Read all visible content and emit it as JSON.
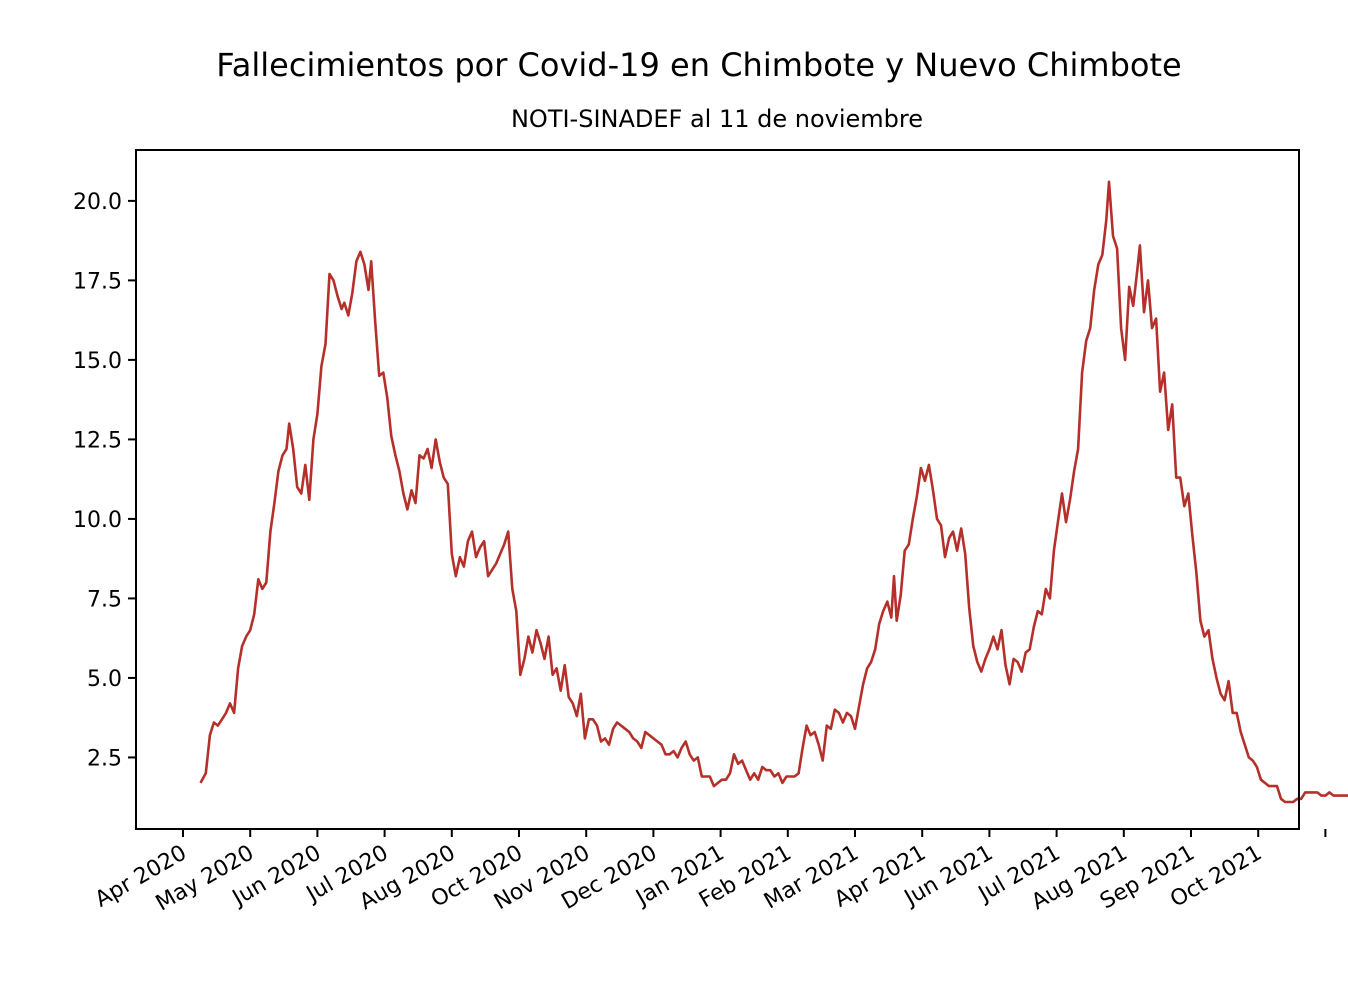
{
  "chart_data": {
    "type": "line",
    "title": "Fallecimientos por Covid-19 en Chimbote y Nuevo Chimbote",
    "subtitle": "NOTI-SINADEF al 11 de noviembre",
    "xlabel": "",
    "ylabel": "",
    "x_tick_labels": [
      "Apr 2020",
      "May 2020",
      "Jun 2020",
      "Jul 2020",
      "Aug 2020",
      "Oct 2020",
      "Nov 2020",
      "Dec 2020",
      "Jan 2021",
      "Feb 2021",
      "Mar 2021",
      "Apr 2021",
      "Jun 2021",
      "Jul 2021",
      "Aug 2021",
      "Sep 2021",
      "Oct 2021"
    ],
    "y_tick_labels": [
      "2.5",
      "5.0",
      "7.5",
      "10.0",
      "12.5",
      "15.0",
      "17.5",
      "20.0"
    ],
    "y_ticks": [
      2.5,
      5.0,
      7.5,
      10.0,
      12.5,
      15.0,
      17.5,
      20.0
    ],
    "ylim": [
      0.25,
      21.6
    ],
    "grid": false,
    "line_color": "#b5302a",
    "series": [
      {
        "points": [
          [
            0.26,
            1.7
          ],
          [
            0.34,
            2.0
          ],
          [
            0.4,
            3.2
          ],
          [
            0.46,
            3.6
          ],
          [
            0.52,
            3.5
          ],
          [
            0.58,
            3.7
          ],
          [
            0.64,
            3.9
          ],
          [
            0.7,
            4.2
          ],
          [
            0.76,
            3.9
          ],
          [
            0.82,
            5.3
          ],
          [
            0.88,
            6.0
          ],
          [
            0.94,
            6.3
          ],
          [
            1.0,
            6.5
          ],
          [
            1.06,
            7.0
          ],
          [
            1.12,
            8.1
          ],
          [
            1.18,
            7.8
          ],
          [
            1.24,
            8.0
          ],
          [
            1.3,
            9.6
          ],
          [
            1.36,
            10.5
          ],
          [
            1.42,
            11.5
          ],
          [
            1.48,
            12.0
          ],
          [
            1.54,
            12.2
          ],
          [
            1.58,
            13.0
          ],
          [
            1.64,
            12.2
          ],
          [
            1.7,
            11.0
          ],
          [
            1.76,
            10.8
          ],
          [
            1.82,
            11.7
          ],
          [
            1.88,
            10.6
          ],
          [
            1.94,
            12.5
          ],
          [
            2.0,
            13.3
          ],
          [
            2.06,
            14.8
          ],
          [
            2.12,
            15.5
          ],
          [
            2.18,
            17.7
          ],
          [
            2.24,
            17.5
          ],
          [
            2.3,
            17.0
          ],
          [
            2.36,
            16.6
          ],
          [
            2.4,
            16.8
          ],
          [
            2.46,
            16.4
          ],
          [
            2.52,
            17.1
          ],
          [
            2.58,
            18.1
          ],
          [
            2.64,
            18.4
          ],
          [
            2.7,
            18.0
          ],
          [
            2.76,
            17.2
          ],
          [
            2.8,
            18.1
          ],
          [
            2.86,
            16.2
          ],
          [
            2.92,
            14.5
          ],
          [
            2.98,
            14.6
          ],
          [
            3.04,
            13.8
          ],
          [
            3.1,
            12.6
          ],
          [
            3.16,
            12.0
          ],
          [
            3.22,
            11.5
          ],
          [
            3.28,
            10.8
          ],
          [
            3.34,
            10.3
          ],
          [
            3.4,
            10.9
          ],
          [
            3.46,
            10.5
          ],
          [
            3.52,
            12.0
          ],
          [
            3.58,
            11.9
          ],
          [
            3.64,
            12.2
          ],
          [
            3.7,
            11.6
          ],
          [
            3.76,
            12.5
          ],
          [
            3.82,
            11.8
          ],
          [
            3.88,
            11.3
          ],
          [
            3.94,
            11.1
          ],
          [
            4.0,
            8.9
          ],
          [
            4.06,
            8.2
          ],
          [
            4.12,
            8.8
          ],
          [
            4.18,
            8.5
          ],
          [
            4.24,
            9.3
          ],
          [
            4.3,
            9.6
          ],
          [
            4.36,
            8.8
          ],
          [
            4.42,
            9.1
          ],
          [
            4.48,
            9.3
          ],
          [
            4.54,
            8.2
          ],
          [
            4.6,
            8.4
          ],
          [
            4.66,
            8.6
          ],
          [
            4.72,
            8.9
          ],
          [
            4.78,
            9.2
          ],
          [
            4.84,
            9.6
          ],
          [
            4.9,
            7.8
          ],
          [
            4.96,
            7.1
          ],
          [
            5.02,
            5.1
          ],
          [
            5.08,
            5.6
          ],
          [
            5.14,
            6.3
          ],
          [
            5.2,
            5.8
          ],
          [
            5.26,
            6.5
          ],
          [
            5.32,
            6.1
          ],
          [
            5.38,
            5.6
          ],
          [
            5.44,
            6.3
          ],
          [
            5.5,
            5.1
          ],
          [
            5.56,
            5.3
          ],
          [
            5.62,
            4.6
          ],
          [
            5.68,
            5.4
          ],
          [
            5.74,
            4.4
          ],
          [
            5.8,
            4.2
          ],
          [
            5.86,
            3.8
          ],
          [
            5.92,
            4.5
          ],
          [
            5.98,
            3.1
          ],
          [
            6.04,
            3.7
          ],
          [
            6.1,
            3.7
          ],
          [
            6.16,
            3.5
          ],
          [
            6.22,
            3.0
          ],
          [
            6.28,
            3.1
          ],
          [
            6.34,
            2.9
          ],
          [
            6.4,
            3.4
          ],
          [
            6.46,
            3.6
          ],
          [
            6.52,
            3.5
          ],
          [
            6.58,
            3.4
          ],
          [
            6.64,
            3.3
          ],
          [
            6.7,
            3.1
          ],
          [
            6.76,
            3.0
          ],
          [
            6.82,
            2.8
          ],
          [
            6.88,
            3.3
          ],
          [
            6.94,
            3.2
          ],
          [
            7.0,
            3.1
          ],
          [
            7.06,
            3.0
          ],
          [
            7.12,
            2.9
          ],
          [
            7.18,
            2.6
          ],
          [
            7.24,
            2.6
          ],
          [
            7.3,
            2.7
          ],
          [
            7.36,
            2.5
          ],
          [
            7.42,
            2.8
          ],
          [
            7.48,
            3.0
          ],
          [
            7.54,
            2.6
          ],
          [
            7.6,
            2.4
          ],
          [
            7.66,
            2.5
          ],
          [
            7.72,
            1.9
          ],
          [
            7.78,
            1.9
          ],
          [
            7.84,
            1.9
          ],
          [
            7.9,
            1.6
          ],
          [
            7.96,
            1.7
          ],
          [
            8.02,
            1.8
          ],
          [
            8.08,
            1.8
          ],
          [
            8.14,
            2.0
          ],
          [
            8.2,
            2.6
          ],
          [
            8.26,
            2.3
          ],
          [
            8.32,
            2.4
          ],
          [
            8.38,
            2.1
          ],
          [
            8.44,
            1.8
          ],
          [
            8.5,
            2.0
          ],
          [
            8.56,
            1.8
          ],
          [
            8.62,
            2.2
          ],
          [
            8.68,
            2.1
          ],
          [
            8.74,
            2.1
          ],
          [
            8.8,
            1.9
          ],
          [
            8.86,
            2.0
          ],
          [
            8.92,
            1.7
          ],
          [
            8.98,
            1.9
          ],
          [
            9.04,
            1.9
          ],
          [
            9.1,
            1.9
          ],
          [
            9.16,
            2.0
          ],
          [
            9.22,
            2.8
          ],
          [
            9.28,
            3.5
          ],
          [
            9.34,
            3.2
          ],
          [
            9.4,
            3.3
          ],
          [
            9.46,
            2.9
          ],
          [
            9.52,
            2.4
          ],
          [
            9.58,
            3.5
          ],
          [
            9.64,
            3.4
          ],
          [
            9.7,
            4.0
          ],
          [
            9.76,
            3.9
          ],
          [
            9.82,
            3.6
          ],
          [
            9.88,
            3.9
          ],
          [
            9.94,
            3.8
          ],
          [
            10.0,
            3.4
          ],
          [
            10.06,
            4.1
          ],
          [
            10.12,
            4.8
          ],
          [
            10.18,
            5.3
          ],
          [
            10.24,
            5.5
          ],
          [
            10.3,
            5.9
          ],
          [
            10.36,
            6.7
          ],
          [
            10.42,
            7.1
          ],
          [
            10.48,
            7.4
          ],
          [
            10.54,
            6.9
          ],
          [
            10.58,
            8.2
          ],
          [
            10.62,
            6.8
          ],
          [
            10.68,
            7.6
          ],
          [
            10.74,
            9.0
          ],
          [
            10.8,
            9.2
          ],
          [
            10.86,
            10.0
          ],
          [
            10.92,
            10.7
          ],
          [
            10.98,
            11.6
          ],
          [
            11.04,
            11.2
          ],
          [
            11.1,
            11.7
          ],
          [
            11.16,
            10.9
          ],
          [
            11.22,
            10.0
          ],
          [
            11.28,
            9.8
          ],
          [
            11.34,
            8.8
          ],
          [
            11.4,
            9.4
          ],
          [
            11.46,
            9.6
          ],
          [
            11.52,
            9.0
          ],
          [
            11.58,
            9.7
          ],
          [
            11.64,
            8.9
          ],
          [
            11.7,
            7.2
          ],
          [
            11.76,
            6.0
          ],
          [
            11.82,
            5.5
          ],
          [
            11.88,
            5.2
          ],
          [
            11.94,
            5.6
          ],
          [
            12.0,
            5.9
          ],
          [
            12.06,
            6.3
          ],
          [
            12.12,
            5.9
          ],
          [
            12.18,
            6.5
          ],
          [
            12.24,
            5.4
          ],
          [
            12.3,
            4.8
          ],
          [
            12.36,
            5.6
          ],
          [
            12.42,
            5.5
          ],
          [
            12.48,
            5.2
          ],
          [
            12.54,
            5.8
          ],
          [
            12.6,
            5.9
          ],
          [
            12.66,
            6.6
          ],
          [
            12.72,
            7.1
          ],
          [
            12.78,
            7.0
          ],
          [
            12.84,
            7.8
          ],
          [
            12.9,
            7.5
          ],
          [
            12.96,
            9.0
          ],
          [
            13.02,
            9.9
          ],
          [
            13.08,
            10.8
          ],
          [
            13.14,
            9.9
          ],
          [
            13.2,
            10.6
          ],
          [
            13.26,
            11.5
          ],
          [
            13.32,
            12.2
          ],
          [
            13.38,
            14.6
          ],
          [
            13.44,
            15.6
          ],
          [
            13.5,
            16.0
          ],
          [
            13.56,
            17.2
          ],
          [
            13.62,
            18.0
          ],
          [
            13.68,
            18.3
          ],
          [
            13.74,
            19.4
          ],
          [
            13.78,
            20.6
          ],
          [
            13.84,
            18.9
          ],
          [
            13.9,
            18.5
          ],
          [
            13.96,
            16.0
          ],
          [
            14.02,
            15.0
          ],
          [
            14.08,
            17.3
          ],
          [
            14.14,
            16.7
          ],
          [
            14.2,
            17.8
          ],
          [
            14.24,
            18.6
          ],
          [
            14.3,
            16.5
          ],
          [
            14.36,
            17.5
          ],
          [
            14.42,
            16.0
          ],
          [
            14.48,
            16.3
          ],
          [
            14.54,
            14.0
          ],
          [
            14.6,
            14.6
          ],
          [
            14.66,
            12.8
          ],
          [
            14.72,
            13.6
          ],
          [
            14.78,
            11.3
          ],
          [
            14.84,
            11.3
          ],
          [
            14.9,
            10.4
          ],
          [
            14.96,
            10.8
          ],
          [
            15.02,
            9.5
          ],
          [
            15.08,
            8.3
          ],
          [
            15.14,
            6.8
          ],
          [
            15.2,
            6.3
          ],
          [
            15.26,
            6.5
          ],
          [
            15.32,
            5.6
          ],
          [
            15.38,
            5.0
          ],
          [
            15.44,
            4.5
          ],
          [
            15.5,
            4.3
          ],
          [
            15.56,
            4.9
          ],
          [
            15.62,
            3.9
          ],
          [
            15.68,
            3.9
          ],
          [
            15.74,
            3.3
          ],
          [
            15.8,
            2.9
          ],
          [
            15.86,
            2.5
          ],
          [
            15.92,
            2.4
          ],
          [
            15.98,
            2.2
          ],
          [
            16.04,
            1.8
          ],
          [
            16.1,
            1.7
          ],
          [
            16.16,
            1.6
          ],
          [
            16.22,
            1.6
          ],
          [
            16.28,
            1.6
          ],
          [
            16.34,
            1.2
          ],
          [
            16.4,
            1.1
          ],
          [
            16.46,
            1.1
          ],
          [
            16.52,
            1.1
          ],
          [
            16.58,
            1.2
          ],
          [
            16.64,
            1.2
          ],
          [
            16.7,
            1.4
          ],
          [
            16.76,
            1.4
          ],
          [
            16.82,
            1.4
          ],
          [
            16.88,
            1.4
          ],
          [
            16.94,
            1.3
          ],
          [
            17.0,
            1.3
          ],
          [
            17.06,
            1.4
          ],
          [
            17.12,
            1.3
          ],
          [
            17.3,
            1.3
          ],
          [
            17.5,
            1.3
          ],
          [
            17.7,
            1.3
          ],
          [
            17.76,
            1.2
          ],
          [
            17.9,
            1.2
          ],
          [
            17.96,
            1.3
          ],
          [
            18.06,
            1.6
          ],
          [
            18.16,
            1.5
          ],
          [
            18.26,
            1.5
          ],
          [
            18.4,
            1.5
          ],
          [
            18.56,
            1.5
          ],
          [
            18.62,
            1.2
          ],
          [
            18.8,
            1.2
          ],
          [
            18.9,
            1.2
          ],
          [
            18.96,
            1.4
          ],
          [
            19.1,
            1.5
          ],
          [
            19.2,
            1.6
          ],
          [
            19.26,
            1.5
          ],
          [
            19.4,
            1.5
          ],
          [
            19.6,
            1.6
          ],
          [
            19.8,
            1.6
          ],
          [
            19.96,
            1.4
          ],
          [
            20.04,
            1.3
          ],
          [
            20.16,
            1.3
          ]
        ]
      }
    ]
  }
}
